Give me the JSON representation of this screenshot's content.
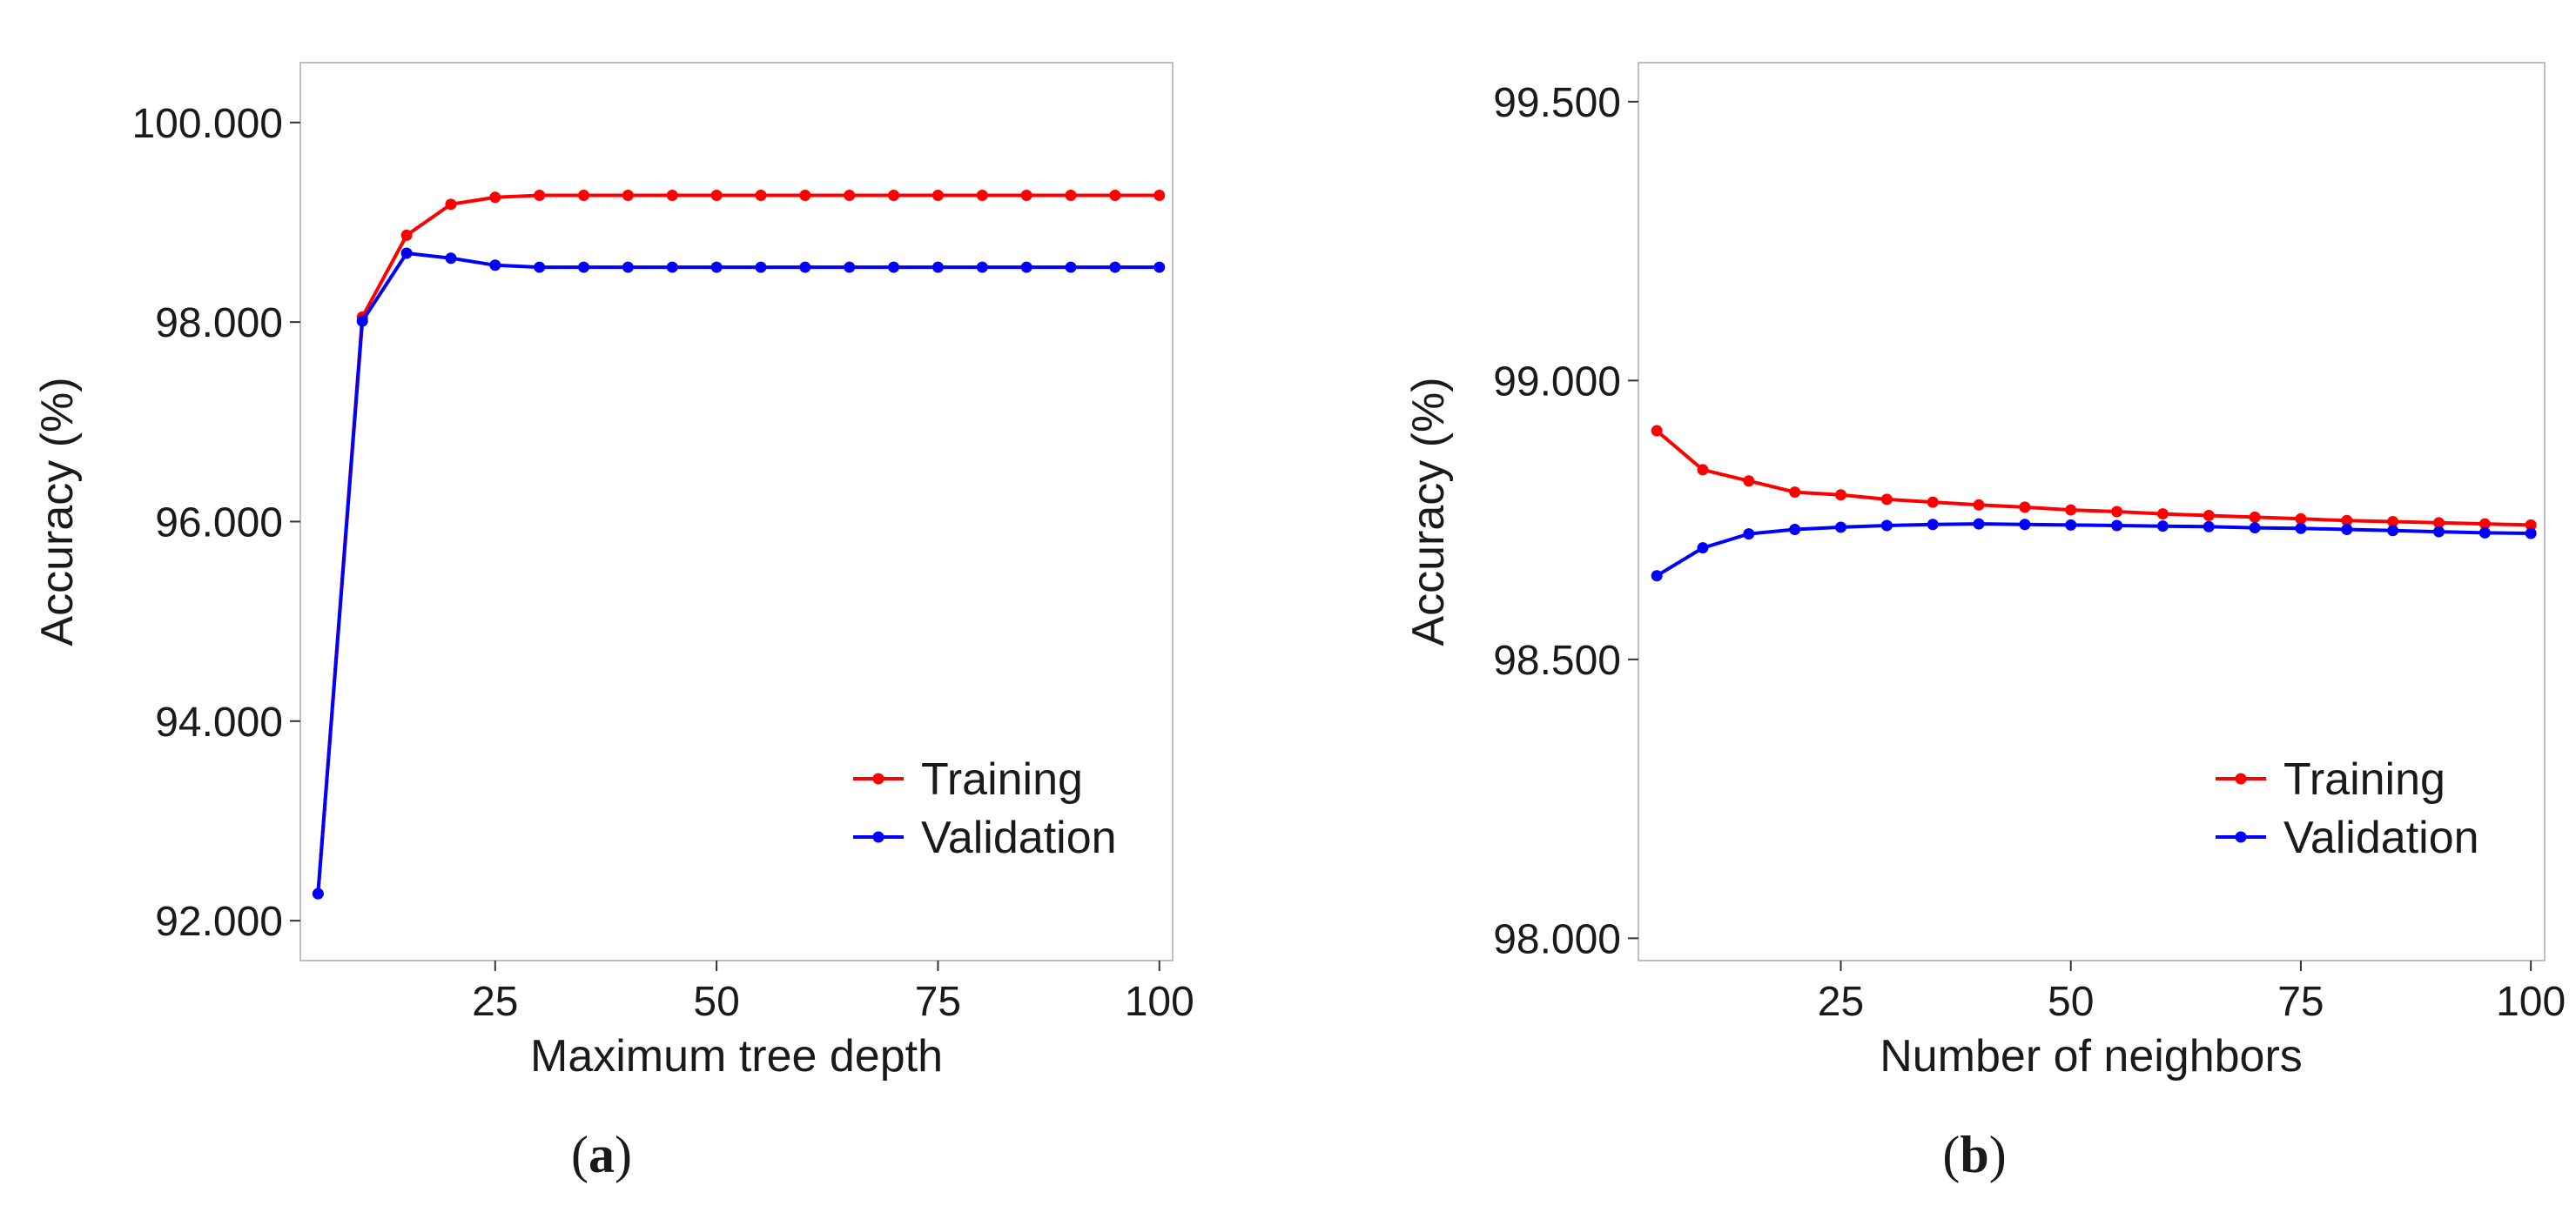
{
  "chart_data": [
    {
      "type": "line",
      "panel_label": "(a)",
      "panel_letter": "a",
      "xlabel": "Maximum tree depth",
      "ylabel": "Accuracy (%)",
      "xlim": [
        3,
        101.5
      ],
      "ylim": [
        91.6,
        100.6
      ],
      "x_ticks": [
        25,
        50,
        75,
        100
      ],
      "x_tick_labels": [
        "25",
        "50",
        "75",
        "100"
      ],
      "y_ticks": [
        92,
        94,
        96,
        98,
        100
      ],
      "y_tick_labels": [
        "92.000",
        "94.000",
        "96.000",
        "98.000",
        "100.000"
      ],
      "grid": false,
      "legend_position": "bottom-right",
      "x": [
        5,
        10,
        15,
        20,
        25,
        30,
        35,
        40,
        45,
        50,
        55,
        60,
        65,
        70,
        75,
        80,
        85,
        90,
        95,
        100
      ],
      "series": [
        {
          "name": "Training",
          "color": "#ff0000",
          "values": [
            92.27,
            98.05,
            98.87,
            99.18,
            99.25,
            99.27,
            99.27,
            99.27,
            99.27,
            99.27,
            99.27,
            99.27,
            99.27,
            99.27,
            99.27,
            99.27,
            99.27,
            99.27,
            99.27,
            99.27
          ]
        },
        {
          "name": "Validation",
          "color": "#0000ff",
          "values": [
            92.27,
            98.01,
            98.69,
            98.64,
            98.57,
            98.55,
            98.55,
            98.55,
            98.55,
            98.55,
            98.55,
            98.55,
            98.55,
            98.55,
            98.55,
            98.55,
            98.55,
            98.55,
            98.55,
            98.55
          ]
        }
      ]
    },
    {
      "type": "line",
      "panel_label": "(b)",
      "panel_letter": "b",
      "xlabel": "Number of neighbors",
      "ylabel": "Accuracy (%)",
      "xlim": [
        3,
        101.5
      ],
      "ylim": [
        97.96,
        99.57
      ],
      "x_ticks": [
        25,
        50,
        75,
        100
      ],
      "x_tick_labels": [
        "25",
        "50",
        "75",
        "100"
      ],
      "y_ticks": [
        98.0,
        98.5,
        99.0,
        99.5
      ],
      "y_tick_labels": [
        "98.000",
        "98.500",
        "99.000",
        "99.500"
      ],
      "grid": false,
      "legend_position": "bottom-right",
      "x": [
        5,
        10,
        15,
        20,
        25,
        30,
        35,
        40,
        45,
        50,
        55,
        60,
        65,
        70,
        75,
        80,
        85,
        90,
        95,
        100
      ],
      "series": [
        {
          "name": "Training",
          "color": "#ff0000",
          "values": [
            98.91,
            98.84,
            98.82,
            98.8,
            98.795,
            98.787,
            98.782,
            98.777,
            98.773,
            98.768,
            98.765,
            98.761,
            98.758,
            98.755,
            98.752,
            98.749,
            98.747,
            98.745,
            98.743,
            98.741
          ]
        },
        {
          "name": "Validation",
          "color": "#0000ff",
          "values": [
            98.65,
            98.7,
            98.725,
            98.733,
            98.737,
            98.74,
            98.742,
            98.743,
            98.742,
            98.741,
            98.74,
            98.739,
            98.738,
            98.736,
            98.735,
            98.733,
            98.731,
            98.729,
            98.727,
            98.726
          ]
        }
      ]
    }
  ]
}
